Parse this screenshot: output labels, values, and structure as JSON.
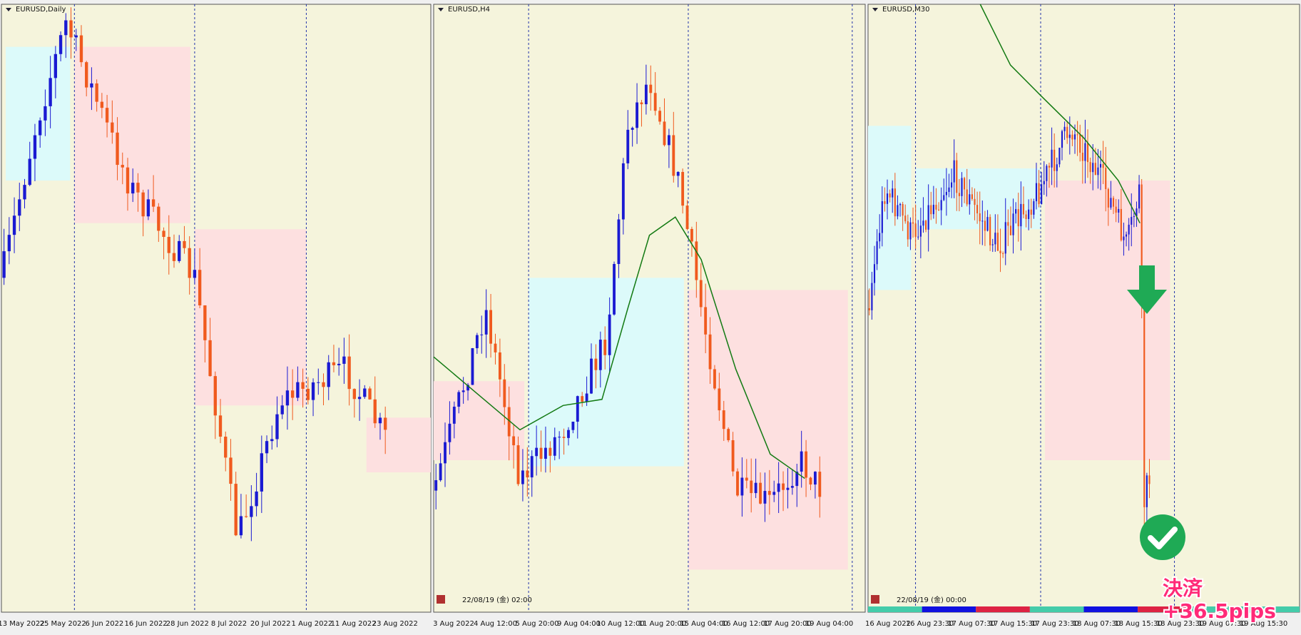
{
  "panels": [
    {
      "title": "EURUSD,Daily",
      "axis_labels": [
        "13 May 2022",
        "25 May 2022",
        "6 Jun 2022",
        "16 Jun 2022",
        "28 Jun 2022",
        "8 Jul 2022",
        "20 Jul 2022",
        "1 Aug 2022",
        "11 Aug 2022",
        "23 Aug 2022"
      ]
    },
    {
      "title": "EURUSD,H4",
      "timestamp": "22/08/19 (金) 02:00",
      "axis_labels": [
        "3 Aug 2022",
        "4 Aug 12:00",
        "5 Aug 20:00",
        "9 Aug 04:00",
        "10 Aug 12:00",
        "11 Aug 20:00",
        "15 Aug 04:00",
        "16 Aug 12:00",
        "17 Aug 20:00",
        "19 Aug 04:00"
      ]
    },
    {
      "title": "EURUSD,M30",
      "timestamp": "22/08/19 (金) 00:00",
      "axis_labels": [
        "16 Aug 2022",
        "16 Aug 23:30",
        "17 Aug 07:30",
        "17 Aug 15:30",
        "17 Aug 23:30",
        "18 Aug 07:30",
        "18 Aug 15:30",
        "18 Aug 23:30",
        "19 Aug 07:30",
        "19 Aug 15:30"
      ]
    }
  ],
  "overlay": {
    "line1": "決済",
    "line2": "+36.5pips"
  }
}
